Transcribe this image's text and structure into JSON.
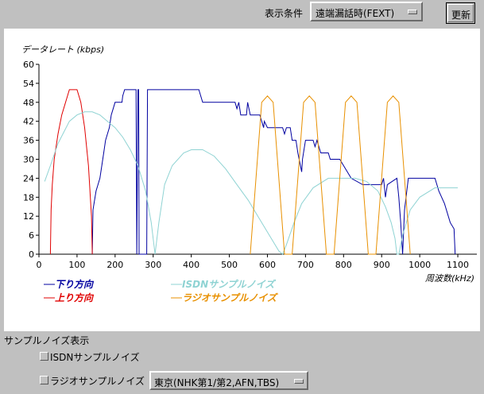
{
  "header": {
    "condition_label": "表示条件",
    "condition_value": "遠端漏話時(FEXT)",
    "refresh_label": "更新"
  },
  "legend": {
    "down": "下り方向",
    "up": "上り方向",
    "isdn": "ISDNサンプルノイズ",
    "radio": "ラジオサンプルノイズ"
  },
  "noise_section": {
    "title": "サンプルノイズ表示",
    "isdn_label": "ISDNサンプルノイズ",
    "radio_label": "ラジオサンプルノイズ",
    "radio_select": "東京(NHK第1/第2,AFN,TBS)"
  },
  "chart_data": {
    "type": "line",
    "ylabel": "データレート (kbps)",
    "xlabel": "周波数(kHz)",
    "xlim": [
      0,
      1150
    ],
    "ylim": [
      0,
      60
    ],
    "xticks": [
      0,
      100,
      200,
      300,
      400,
      500,
      600,
      700,
      800,
      900,
      1000,
      1100
    ],
    "yticks": [
      0,
      6,
      12,
      18,
      24,
      30,
      36,
      42,
      48,
      54,
      60
    ],
    "colors": {
      "down": "#0000a0",
      "up": "#e00000",
      "isdn": "#8fd3d3",
      "radio": "#e89000"
    },
    "series": [
      {
        "name": "下り方向",
        "color": "#0000a0",
        "points": [
          [
            140,
            0
          ],
          [
            142,
            14
          ],
          [
            150,
            20
          ],
          [
            155,
            22
          ],
          [
            160,
            24
          ],
          [
            165,
            28
          ],
          [
            170,
            32
          ],
          [
            175,
            36
          ],
          [
            185,
            40
          ],
          [
            190,
            44
          ],
          [
            195,
            46
          ],
          [
            200,
            48
          ],
          [
            218,
            48
          ],
          [
            220,
            50
          ],
          [
            225,
            52
          ],
          [
            255,
            52
          ],
          [
            257,
            0
          ],
          [
            260,
            52
          ],
          [
            262,
            52
          ],
          [
            263,
            0
          ],
          [
            283,
            0
          ],
          [
            285,
            52
          ],
          [
            420,
            52
          ],
          [
            430,
            48
          ],
          [
            515,
            48
          ],
          [
            520,
            46
          ],
          [
            525,
            48
          ],
          [
            530,
            44
          ],
          [
            545,
            44
          ],
          [
            548,
            48
          ],
          [
            555,
            44
          ],
          [
            580,
            44
          ],
          [
            585,
            42
          ],
          [
            590,
            40
          ],
          [
            592,
            42
          ],
          [
            600,
            40
          ],
          [
            640,
            40
          ],
          [
            645,
            38
          ],
          [
            650,
            40
          ],
          [
            660,
            40
          ],
          [
            665,
            36
          ],
          [
            675,
            36
          ],
          [
            680,
            32
          ],
          [
            690,
            26
          ],
          [
            692,
            30
          ],
          [
            700,
            36
          ],
          [
            720,
            36
          ],
          [
            725,
            34
          ],
          [
            730,
            36
          ],
          [
            740,
            32
          ],
          [
            760,
            32
          ],
          [
            765,
            30
          ],
          [
            790,
            30
          ],
          [
            800,
            28
          ],
          [
            820,
            24
          ],
          [
            850,
            22
          ],
          [
            900,
            22
          ],
          [
            905,
            24
          ],
          [
            910,
            18
          ],
          [
            915,
            22
          ],
          [
            940,
            24
          ],
          [
            945,
            18
          ],
          [
            950,
            10
          ],
          [
            955,
            0
          ],
          [
            960,
            14
          ],
          [
            970,
            24
          ],
          [
            1040,
            24
          ],
          [
            1050,
            20
          ],
          [
            1065,
            16
          ],
          [
            1080,
            10
          ],
          [
            1090,
            8
          ],
          [
            1093,
            0
          ]
        ]
      },
      {
        "name": "上り方向",
        "color": "#e00000",
        "points": [
          [
            30,
            0
          ],
          [
            32,
            14
          ],
          [
            35,
            22
          ],
          [
            40,
            30
          ],
          [
            50,
            38
          ],
          [
            60,
            44
          ],
          [
            70,
            48
          ],
          [
            80,
            52
          ],
          [
            100,
            52
          ],
          [
            110,
            48
          ],
          [
            120,
            40
          ],
          [
            130,
            28
          ],
          [
            138,
            12
          ],
          [
            140,
            0
          ]
        ]
      },
      {
        "name": "ISDNサンプルノイズ",
        "color": "#8fd3d3",
        "points": [
          [
            15,
            23
          ],
          [
            30,
            28
          ],
          [
            50,
            35
          ],
          [
            80,
            42
          ],
          [
            100,
            44
          ],
          [
            120,
            45
          ],
          [
            140,
            45
          ],
          [
            160,
            44
          ],
          [
            180,
            42
          ],
          [
            200,
            40
          ],
          [
            220,
            37
          ],
          [
            240,
            33
          ],
          [
            260,
            28
          ],
          [
            280,
            20
          ],
          [
            295,
            10
          ],
          [
            305,
            0
          ],
          [
            315,
            10
          ],
          [
            330,
            22
          ],
          [
            350,
            28
          ],
          [
            380,
            32
          ],
          [
            400,
            33
          ],
          [
            430,
            33
          ],
          [
            460,
            31
          ],
          [
            490,
            27
          ],
          [
            520,
            22
          ],
          [
            550,
            17
          ],
          [
            580,
            11
          ],
          [
            610,
            5
          ],
          [
            630,
            1
          ],
          [
            640,
            0
          ],
          [
            650,
            3
          ],
          [
            670,
            10
          ],
          [
            690,
            16
          ],
          [
            720,
            21
          ],
          [
            760,
            24
          ],
          [
            800,
            24
          ],
          [
            830,
            24
          ],
          [
            860,
            23
          ],
          [
            890,
            20
          ],
          [
            910,
            15
          ],
          [
            925,
            10
          ],
          [
            935,
            5
          ],
          [
            940,
            0
          ],
          [
            945,
            0
          ],
          [
            955,
            6
          ],
          [
            975,
            14
          ],
          [
            1000,
            18
          ],
          [
            1040,
            21
          ],
          [
            1070,
            21
          ],
          [
            1100,
            21
          ]
        ]
      },
      {
        "name": "ラジオサンプルノイズ",
        "color": "#e89000",
        "points": [
          [
            555,
            0
          ],
          [
            585,
            48
          ],
          [
            600,
            50
          ],
          [
            615,
            48
          ],
          [
            645,
            0
          ],
          [
            665,
            0
          ],
          [
            695,
            48
          ],
          [
            710,
            50
          ],
          [
            725,
            48
          ],
          [
            755,
            0
          ],
          [
            775,
            0
          ],
          [
            805,
            48
          ],
          [
            820,
            50
          ],
          [
            835,
            48
          ],
          [
            865,
            0
          ],
          [
            885,
            0
          ],
          [
            915,
            48
          ],
          [
            930,
            50
          ],
          [
            945,
            48
          ],
          [
            975,
            0
          ]
        ]
      }
    ]
  }
}
